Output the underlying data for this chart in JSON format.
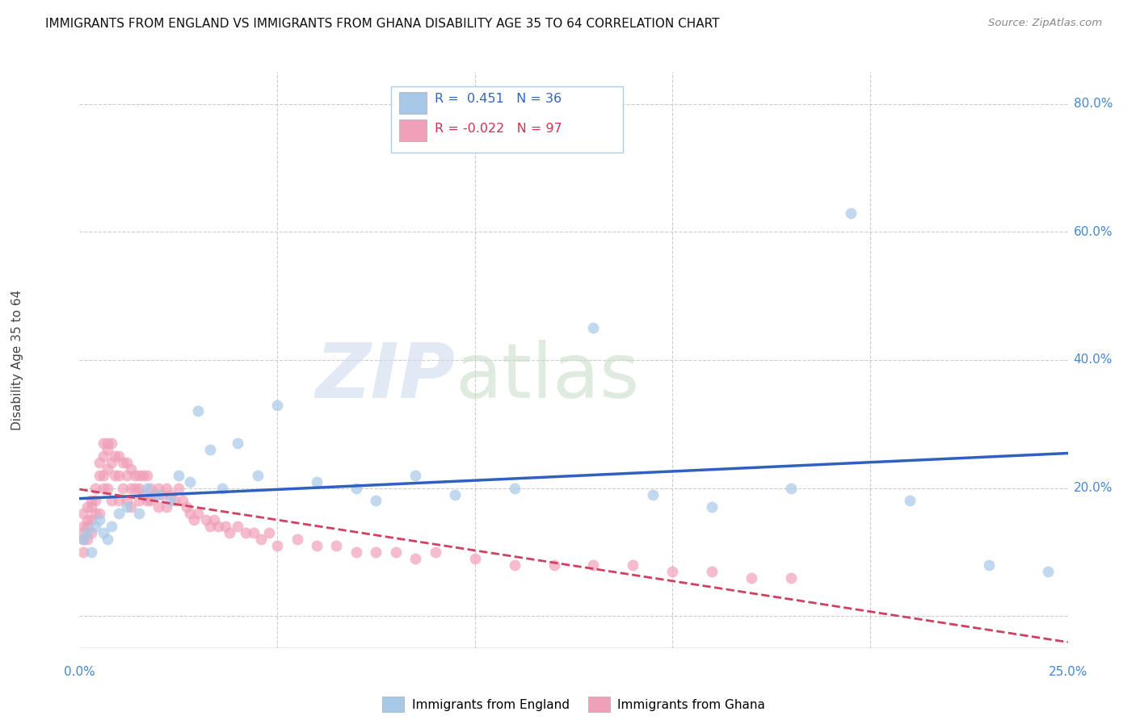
{
  "title": "IMMIGRANTS FROM ENGLAND VS IMMIGRANTS FROM GHANA DISABILITY AGE 35 TO 64 CORRELATION CHART",
  "source": "Source: ZipAtlas.com",
  "ylabel": "Disability Age 35 to 64",
  "xmin": 0.0,
  "xmax": 0.25,
  "ymin": -0.05,
  "ymax": 0.85,
  "england_color": "#a8c8e8",
  "ghana_color": "#f0a0b8",
  "england_line_color": "#3060c0",
  "ghana_line_color": "#d04060",
  "england_R": 0.451,
  "england_N": 36,
  "ghana_R": -0.022,
  "ghana_N": 97,
  "england_x": [
    0.001,
    0.002,
    0.003,
    0.004,
    0.005,
    0.006,
    0.007,
    0.008,
    0.01,
    0.012,
    0.015,
    0.017,
    0.02,
    0.023,
    0.025,
    0.028,
    0.03,
    0.033,
    0.036,
    0.04,
    0.045,
    0.05,
    0.06,
    0.07,
    0.075,
    0.085,
    0.095,
    0.11,
    0.13,
    0.145,
    0.16,
    0.18,
    0.195,
    0.21,
    0.23,
    0.245
  ],
  "england_y": [
    0.12,
    0.13,
    0.1,
    0.14,
    0.15,
    0.13,
    0.12,
    0.14,
    0.16,
    0.17,
    0.16,
    0.2,
    0.19,
    0.18,
    0.22,
    0.21,
    0.32,
    0.26,
    0.2,
    0.27,
    0.22,
    0.33,
    0.21,
    0.2,
    0.18,
    0.22,
    0.19,
    0.2,
    0.45,
    0.19,
    0.17,
    0.2,
    0.63,
    0.18,
    0.08,
    0.07
  ],
  "ghana_x": [
    0.001,
    0.001,
    0.001,
    0.001,
    0.001,
    0.002,
    0.002,
    0.002,
    0.002,
    0.003,
    0.003,
    0.003,
    0.003,
    0.004,
    0.004,
    0.004,
    0.005,
    0.005,
    0.005,
    0.006,
    0.006,
    0.006,
    0.006,
    0.007,
    0.007,
    0.007,
    0.007,
    0.008,
    0.008,
    0.008,
    0.009,
    0.009,
    0.01,
    0.01,
    0.01,
    0.011,
    0.011,
    0.012,
    0.012,
    0.012,
    0.013,
    0.013,
    0.013,
    0.014,
    0.014,
    0.015,
    0.015,
    0.015,
    0.016,
    0.016,
    0.017,
    0.017,
    0.018,
    0.018,
    0.019,
    0.02,
    0.02,
    0.021,
    0.022,
    0.022,
    0.023,
    0.024,
    0.025,
    0.026,
    0.027,
    0.028,
    0.029,
    0.03,
    0.032,
    0.033,
    0.034,
    0.035,
    0.037,
    0.038,
    0.04,
    0.042,
    0.044,
    0.046,
    0.048,
    0.05,
    0.055,
    0.06,
    0.065,
    0.07,
    0.075,
    0.08,
    0.085,
    0.09,
    0.1,
    0.11,
    0.12,
    0.13,
    0.14,
    0.15,
    0.16,
    0.17,
    0.18
  ],
  "ghana_y": [
    0.16,
    0.14,
    0.13,
    0.12,
    0.1,
    0.17,
    0.15,
    0.14,
    0.12,
    0.18,
    0.17,
    0.15,
    0.13,
    0.2,
    0.18,
    0.16,
    0.24,
    0.22,
    0.16,
    0.27,
    0.25,
    0.22,
    0.2,
    0.27,
    0.26,
    0.23,
    0.2,
    0.27,
    0.24,
    0.18,
    0.25,
    0.22,
    0.25,
    0.22,
    0.18,
    0.24,
    0.2,
    0.24,
    0.22,
    0.18,
    0.23,
    0.2,
    0.17,
    0.22,
    0.2,
    0.22,
    0.2,
    0.18,
    0.22,
    0.19,
    0.22,
    0.18,
    0.2,
    0.18,
    0.19,
    0.2,
    0.17,
    0.19,
    0.2,
    0.17,
    0.19,
    0.18,
    0.2,
    0.18,
    0.17,
    0.16,
    0.15,
    0.16,
    0.15,
    0.14,
    0.15,
    0.14,
    0.14,
    0.13,
    0.14,
    0.13,
    0.13,
    0.12,
    0.13,
    0.11,
    0.12,
    0.11,
    0.11,
    0.1,
    0.1,
    0.1,
    0.09,
    0.1,
    0.09,
    0.08,
    0.08,
    0.08,
    0.08,
    0.07,
    0.07,
    0.06,
    0.06
  ]
}
